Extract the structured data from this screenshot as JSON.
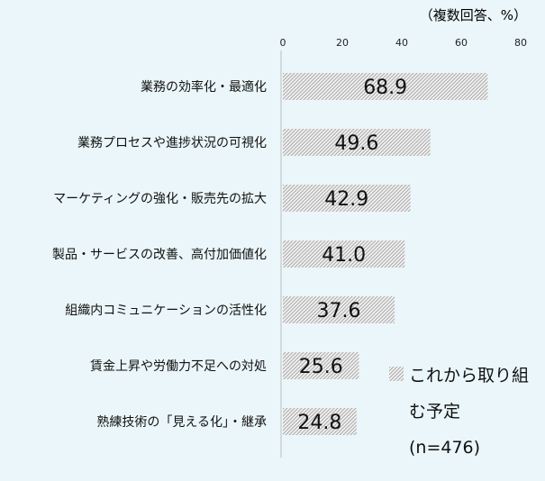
{
  "chart_data": {
    "type": "bar",
    "orientation": "horizontal",
    "unit_note": "（複数回答、%）",
    "categories": [
      "業務の効率化・最適化",
      "業務プロセスや進捗状況の可視化",
      "マーケティングの強化・販売先の拡大",
      "製品・サービスの改善、高付加価値化",
      "組織内コミュニケーションの活性化",
      "賃金上昇や労働力不足への対処",
      "熟練技術の「見える化」・継承"
    ],
    "series": [
      {
        "name": "これから取り組む予定(n=476)",
        "values": [
          68.9,
          49.6,
          42.9,
          41.0,
          37.6,
          25.6,
          24.8
        ],
        "value_labels": [
          "68.9",
          "49.6",
          "42.9",
          "41.0",
          "37.6",
          "25.6",
          "24.8"
        ]
      }
    ],
    "xlim": [
      0,
      80
    ],
    "xticks": [
      "0",
      "20",
      "40",
      "60",
      "80"
    ],
    "grid": false,
    "legend": {
      "position": "right",
      "lines": [
        "これから取り組",
        "む予定",
        "(n=476)"
      ]
    }
  }
}
